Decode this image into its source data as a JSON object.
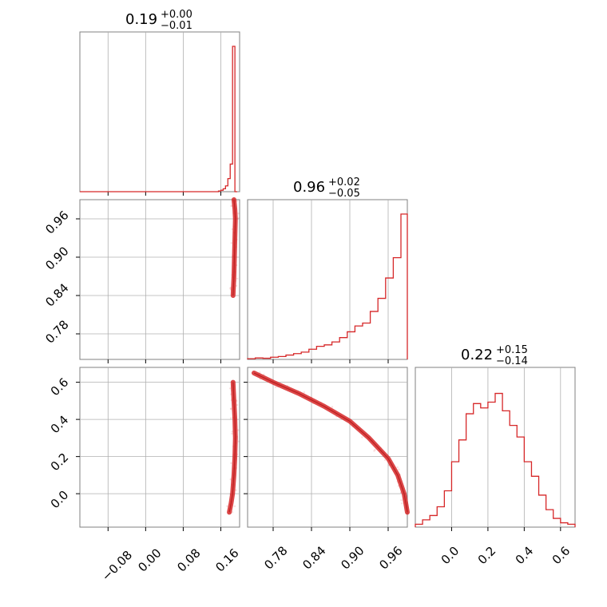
{
  "colors": {
    "accent": "#d62728",
    "grid": "#b0b0b0",
    "frame": "#808080"
  },
  "chart_data": {
    "type": "corner",
    "grid": true,
    "panels": [
      {
        "id": "hist-1",
        "type": "step-histogram",
        "title": {
          "median": "0.19",
          "plus": "+0.00",
          "minus": "−0.01"
        },
        "xlim": [
          -0.14,
          0.2
        ],
        "xticks": [
          -0.08,
          0.0,
          0.08,
          0.16
        ],
        "bins": [
          0.155,
          0.16,
          0.165,
          0.17,
          0.175,
          0.18,
          0.185,
          0.19,
          0.195
        ],
        "counts": [
          0.005,
          0.01,
          0.02,
          0.04,
          0.09,
          0.19,
          1.0,
          0.0
        ]
      },
      {
        "id": "hist-2",
        "type": "step-histogram",
        "title": {
          "median": "0.96",
          "plus": "+0.02",
          "minus": "−0.05"
        },
        "xlim": [
          0.74,
          0.99
        ],
        "xticks": [
          0.78,
          0.84,
          0.9,
          0.96
        ],
        "bins": [
          0.74,
          0.752,
          0.764,
          0.776,
          0.788,
          0.8,
          0.812,
          0.824,
          0.836,
          0.848,
          0.86,
          0.872,
          0.884,
          0.896,
          0.908,
          0.92,
          0.932,
          0.944,
          0.956,
          0.968,
          0.98,
          0.99
        ],
        "counts": [
          0.005,
          0.01,
          0.008,
          0.015,
          0.02,
          0.03,
          0.04,
          0.05,
          0.07,
          0.09,
          0.1,
          0.12,
          0.15,
          0.19,
          0.23,
          0.25,
          0.33,
          0.42,
          0.56,
          0.7,
          1.0
        ]
      },
      {
        "id": "hist-3",
        "type": "step-histogram",
        "title": {
          "median": "0.22",
          "plus": "+0.15",
          "minus": "−0.14"
        },
        "xlim": [
          -0.2,
          0.68
        ],
        "xticks": [
          0.0,
          0.2,
          0.4,
          0.6
        ],
        "bins": [
          -0.2,
          -0.16,
          -0.12,
          -0.08,
          -0.04,
          0.0,
          0.04,
          0.08,
          0.12,
          0.16,
          0.2,
          0.24,
          0.28,
          0.32,
          0.36,
          0.4,
          0.44,
          0.48,
          0.52,
          0.56,
          0.6,
          0.64,
          0.68
        ],
        "counts": [
          0.02,
          0.05,
          0.08,
          0.14,
          0.25,
          0.45,
          0.6,
          0.78,
          0.85,
          0.82,
          0.86,
          0.92,
          0.8,
          0.7,
          0.62,
          0.45,
          0.35,
          0.22,
          0.12,
          0.06,
          0.03,
          0.02
        ]
      },
      {
        "id": "scatter-2-1",
        "type": "contour-scatter",
        "xlim": [
          -0.14,
          0.2
        ],
        "ylim": [
          0.74,
          0.99
        ],
        "yticks": [
          0.78,
          0.84,
          0.9,
          0.96
        ],
        "curve": [
          [
            0.188,
            0.99
          ],
          [
            0.19,
            0.975
          ],
          [
            0.191,
            0.96
          ],
          [
            0.19,
            0.93
          ],
          [
            0.189,
            0.9
          ],
          [
            0.188,
            0.87
          ],
          [
            0.186,
            0.84
          ]
        ]
      },
      {
        "id": "scatter-3-1",
        "type": "contour-scatter",
        "xlim": [
          -0.14,
          0.2
        ],
        "ylim": [
          -0.18,
          0.68
        ],
        "yticks": [
          0.0,
          0.2,
          0.4,
          0.6
        ],
        "curve": [
          [
            0.178,
            -0.1
          ],
          [
            0.182,
            -0.05
          ],
          [
            0.185,
            0.0
          ],
          [
            0.188,
            0.1
          ],
          [
            0.19,
            0.2
          ],
          [
            0.191,
            0.3
          ],
          [
            0.19,
            0.4
          ],
          [
            0.188,
            0.5
          ],
          [
            0.186,
            0.6
          ]
        ]
      },
      {
        "id": "scatter-3-2",
        "type": "contour-scatter",
        "xlim": [
          0.74,
          0.99
        ],
        "ylim": [
          -0.18,
          0.68
        ],
        "curve": [
          [
            0.75,
            0.65
          ],
          [
            0.78,
            0.6
          ],
          [
            0.82,
            0.54
          ],
          [
            0.86,
            0.47
          ],
          [
            0.9,
            0.39
          ],
          [
            0.93,
            0.3
          ],
          [
            0.96,
            0.19
          ],
          [
            0.975,
            0.1
          ],
          [
            0.985,
            0.0
          ],
          [
            0.99,
            -0.1
          ]
        ]
      }
    ],
    "x_tick_labels": {
      "col1": [
        "−0.08",
        "0.00",
        "0.08",
        "0.16"
      ],
      "col2": [
        "0.78",
        "0.84",
        "0.90",
        "0.96"
      ],
      "col3": [
        "0.0",
        "0.2",
        "0.4",
        "0.6"
      ]
    },
    "y_tick_labels": {
      "row2": [
        "0.96",
        "0.90",
        "0.84",
        "0.78"
      ],
      "row3": [
        "0.6",
        "0.4",
        "0.2",
        "0.0"
      ]
    }
  }
}
